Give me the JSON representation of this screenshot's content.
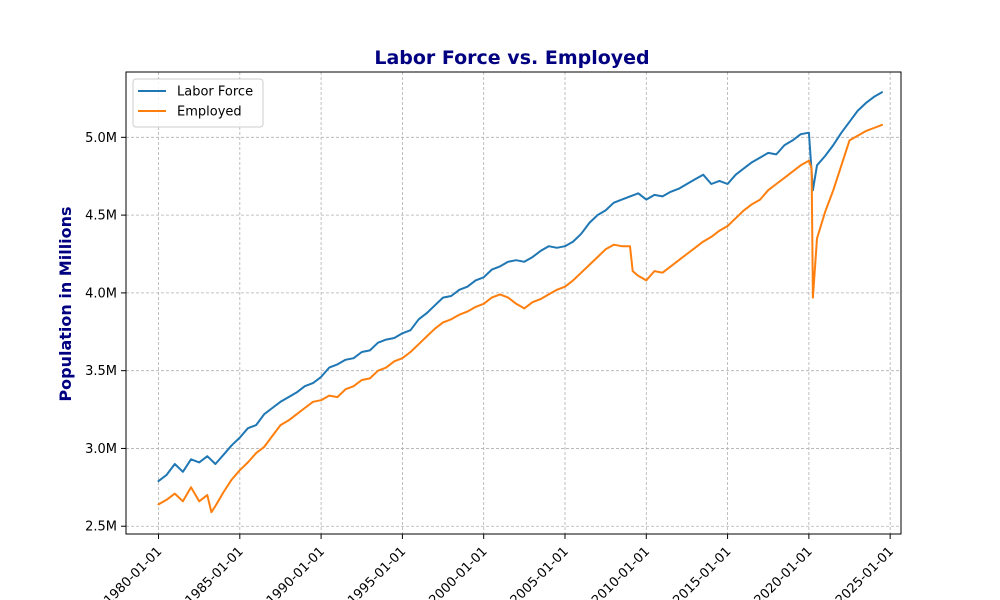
{
  "chart_data": {
    "type": "line",
    "title": "Labor Force vs. Employed",
    "xlabel": "",
    "ylabel": "Population in Millions",
    "title_color": "#000080",
    "ylabel_color": "#000080",
    "grid": true,
    "legend_placement": "top-left",
    "xlim": [
      "1978-01-01",
      "2025-09-01"
    ],
    "ylim": [
      2.45,
      5.42
    ],
    "x_ticks": [
      "1980-01-01",
      "1985-01-01",
      "1990-01-01",
      "1995-01-01",
      "2000-01-01",
      "2005-01-01",
      "2010-01-01",
      "2015-01-01",
      "2020-01-01",
      "2025-01-01"
    ],
    "y_ticks": [
      {
        "value": 2.5,
        "label": "2.5M"
      },
      {
        "value": 3.0,
        "label": "3.0M"
      },
      {
        "value": 3.5,
        "label": "3.5M"
      },
      {
        "value": 4.0,
        "label": "4.0M"
      },
      {
        "value": 4.5,
        "label": "4.5M"
      },
      {
        "value": 5.0,
        "label": "5.0M"
      }
    ],
    "series": [
      {
        "name": "Labor Force",
        "color": "#1f77b4",
        "points": [
          [
            "1980-01-01",
            2.79
          ],
          [
            "1980-07-01",
            2.83
          ],
          [
            "1981-01-01",
            2.9
          ],
          [
            "1981-07-01",
            2.85
          ],
          [
            "1982-01-01",
            2.93
          ],
          [
            "1982-07-01",
            2.91
          ],
          [
            "1983-01-01",
            2.95
          ],
          [
            "1983-07-01",
            2.9
          ],
          [
            "1984-01-01",
            2.96
          ],
          [
            "1984-07-01",
            3.02
          ],
          [
            "1985-01-01",
            3.07
          ],
          [
            "1985-07-01",
            3.13
          ],
          [
            "1986-01-01",
            3.15
          ],
          [
            "1986-07-01",
            3.22
          ],
          [
            "1987-01-01",
            3.26
          ],
          [
            "1987-07-01",
            3.3
          ],
          [
            "1988-01-01",
            3.33
          ],
          [
            "1988-07-01",
            3.36
          ],
          [
            "1989-01-01",
            3.4
          ],
          [
            "1989-07-01",
            3.42
          ],
          [
            "1990-01-01",
            3.46
          ],
          [
            "1990-07-01",
            3.52
          ],
          [
            "1991-01-01",
            3.54
          ],
          [
            "1991-07-01",
            3.57
          ],
          [
            "1992-01-01",
            3.58
          ],
          [
            "1992-07-01",
            3.62
          ],
          [
            "1993-01-01",
            3.63
          ],
          [
            "1993-07-01",
            3.68
          ],
          [
            "1994-01-01",
            3.7
          ],
          [
            "1994-07-01",
            3.71
          ],
          [
            "1995-01-01",
            3.74
          ],
          [
            "1995-07-01",
            3.76
          ],
          [
            "1996-01-01",
            3.83
          ],
          [
            "1996-07-01",
            3.87
          ],
          [
            "1997-01-01",
            3.92
          ],
          [
            "1997-07-01",
            3.97
          ],
          [
            "1998-01-01",
            3.98
          ],
          [
            "1998-07-01",
            4.02
          ],
          [
            "1999-01-01",
            4.04
          ],
          [
            "1999-07-01",
            4.08
          ],
          [
            "2000-01-01",
            4.1
          ],
          [
            "2000-07-01",
            4.15
          ],
          [
            "2001-01-01",
            4.17
          ],
          [
            "2001-07-01",
            4.2
          ],
          [
            "2002-01-01",
            4.21
          ],
          [
            "2002-07-01",
            4.2
          ],
          [
            "2003-01-01",
            4.23
          ],
          [
            "2003-07-01",
            4.27
          ],
          [
            "2004-01-01",
            4.3
          ],
          [
            "2004-07-01",
            4.29
          ],
          [
            "2005-01-01",
            4.3
          ],
          [
            "2005-07-01",
            4.33
          ],
          [
            "2006-01-01",
            4.38
          ],
          [
            "2006-07-01",
            4.45
          ],
          [
            "2007-01-01",
            4.5
          ],
          [
            "2007-07-01",
            4.53
          ],
          [
            "2008-01-01",
            4.58
          ],
          [
            "2008-07-01",
            4.6
          ],
          [
            "2009-01-01",
            4.62
          ],
          [
            "2009-07-01",
            4.64
          ],
          [
            "2010-01-01",
            4.6
          ],
          [
            "2010-07-01",
            4.63
          ],
          [
            "2011-01-01",
            4.62
          ],
          [
            "2011-07-01",
            4.65
          ],
          [
            "2012-01-01",
            4.67
          ],
          [
            "2012-07-01",
            4.7
          ],
          [
            "2013-01-01",
            4.73
          ],
          [
            "2013-07-01",
            4.76
          ],
          [
            "2014-01-01",
            4.7
          ],
          [
            "2014-07-01",
            4.72
          ],
          [
            "2015-01-01",
            4.7
          ],
          [
            "2015-07-01",
            4.76
          ],
          [
            "2016-01-01",
            4.8
          ],
          [
            "2016-07-01",
            4.84
          ],
          [
            "2017-01-01",
            4.87
          ],
          [
            "2017-07-01",
            4.9
          ],
          [
            "2018-01-01",
            4.89
          ],
          [
            "2018-07-01",
            4.95
          ],
          [
            "2019-01-01",
            4.98
          ],
          [
            "2019-07-01",
            5.02
          ],
          [
            "2020-01-01",
            5.03
          ],
          [
            "2020-04-01",
            4.66
          ],
          [
            "2020-07-01",
            4.82
          ],
          [
            "2021-01-01",
            4.88
          ],
          [
            "2021-07-01",
            4.95
          ],
          [
            "2022-01-01",
            5.03
          ],
          [
            "2022-07-01",
            5.1
          ],
          [
            "2023-01-01",
            5.17
          ],
          [
            "2023-07-01",
            5.22
          ],
          [
            "2024-01-01",
            5.26
          ],
          [
            "2024-07-01",
            5.29
          ]
        ]
      },
      {
        "name": "Employed",
        "color": "#ff7f0e",
        "points": [
          [
            "1980-01-01",
            2.64
          ],
          [
            "1980-07-01",
            2.67
          ],
          [
            "1981-01-01",
            2.71
          ],
          [
            "1981-07-01",
            2.66
          ],
          [
            "1982-01-01",
            2.75
          ],
          [
            "1982-07-01",
            2.66
          ],
          [
            "1983-01-01",
            2.7
          ],
          [
            "1983-04-01",
            2.59
          ],
          [
            "1983-07-01",
            2.63
          ],
          [
            "1984-01-01",
            2.72
          ],
          [
            "1984-07-01",
            2.8
          ],
          [
            "1985-01-01",
            2.86
          ],
          [
            "1985-07-01",
            2.91
          ],
          [
            "1986-01-01",
            2.97
          ],
          [
            "1986-07-01",
            3.01
          ],
          [
            "1987-01-01",
            3.08
          ],
          [
            "1987-07-01",
            3.15
          ],
          [
            "1988-01-01",
            3.18
          ],
          [
            "1988-07-01",
            3.22
          ],
          [
            "1989-01-01",
            3.26
          ],
          [
            "1989-07-01",
            3.3
          ],
          [
            "1990-01-01",
            3.31
          ],
          [
            "1990-07-01",
            3.34
          ],
          [
            "1991-01-01",
            3.33
          ],
          [
            "1991-07-01",
            3.38
          ],
          [
            "1992-01-01",
            3.4
          ],
          [
            "1992-07-01",
            3.44
          ],
          [
            "1993-01-01",
            3.45
          ],
          [
            "1993-07-01",
            3.5
          ],
          [
            "1994-01-01",
            3.52
          ],
          [
            "1994-07-01",
            3.56
          ],
          [
            "1995-01-01",
            3.58
          ],
          [
            "1995-07-01",
            3.62
          ],
          [
            "1996-01-01",
            3.67
          ],
          [
            "1996-07-01",
            3.72
          ],
          [
            "1997-01-01",
            3.77
          ],
          [
            "1997-07-01",
            3.81
          ],
          [
            "1998-01-01",
            3.83
          ],
          [
            "1998-07-01",
            3.86
          ],
          [
            "1999-01-01",
            3.88
          ],
          [
            "1999-07-01",
            3.91
          ],
          [
            "2000-01-01",
            3.93
          ],
          [
            "2000-07-01",
            3.97
          ],
          [
            "2001-01-01",
            3.99
          ],
          [
            "2001-07-01",
            3.97
          ],
          [
            "2002-01-01",
            3.93
          ],
          [
            "2002-07-01",
            3.9
          ],
          [
            "2003-01-01",
            3.94
          ],
          [
            "2003-07-01",
            3.96
          ],
          [
            "2004-01-01",
            3.99
          ],
          [
            "2004-07-01",
            4.02
          ],
          [
            "2005-01-01",
            4.04
          ],
          [
            "2005-07-01",
            4.08
          ],
          [
            "2006-01-01",
            4.13
          ],
          [
            "2006-07-01",
            4.18
          ],
          [
            "2007-01-01",
            4.23
          ],
          [
            "2007-07-01",
            4.28
          ],
          [
            "2008-01-01",
            4.31
          ],
          [
            "2008-07-01",
            4.3
          ],
          [
            "2009-01-01",
            4.3
          ],
          [
            "2009-03-01",
            4.14
          ],
          [
            "2009-07-01",
            4.11
          ],
          [
            "2010-01-01",
            4.08
          ],
          [
            "2010-07-01",
            4.14
          ],
          [
            "2011-01-01",
            4.13
          ],
          [
            "2011-07-01",
            4.17
          ],
          [
            "2012-01-01",
            4.21
          ],
          [
            "2012-07-01",
            4.25
          ],
          [
            "2013-01-01",
            4.29
          ],
          [
            "2013-07-01",
            4.33
          ],
          [
            "2014-01-01",
            4.36
          ],
          [
            "2014-07-01",
            4.4
          ],
          [
            "2015-01-01",
            4.43
          ],
          [
            "2015-07-01",
            4.48
          ],
          [
            "2016-01-01",
            4.53
          ],
          [
            "2016-07-01",
            4.57
          ],
          [
            "2017-01-01",
            4.6
          ],
          [
            "2017-07-01",
            4.66
          ],
          [
            "2018-01-01",
            4.7
          ],
          [
            "2018-07-01",
            4.74
          ],
          [
            "2019-01-01",
            4.78
          ],
          [
            "2019-07-01",
            4.82
          ],
          [
            "2020-01-01",
            4.85
          ],
          [
            "2020-03-01",
            4.8
          ],
          [
            "2020-04-01",
            3.97
          ],
          [
            "2020-07-01",
            4.35
          ],
          [
            "2021-01-01",
            4.52
          ],
          [
            "2021-07-01",
            4.66
          ],
          [
            "2022-01-01",
            4.82
          ],
          [
            "2022-07-01",
            4.98
          ],
          [
            "2023-01-01",
            5.01
          ],
          [
            "2023-07-01",
            5.04
          ],
          [
            "2024-01-01",
            5.06
          ],
          [
            "2024-07-01",
            5.08
          ]
        ]
      }
    ]
  }
}
